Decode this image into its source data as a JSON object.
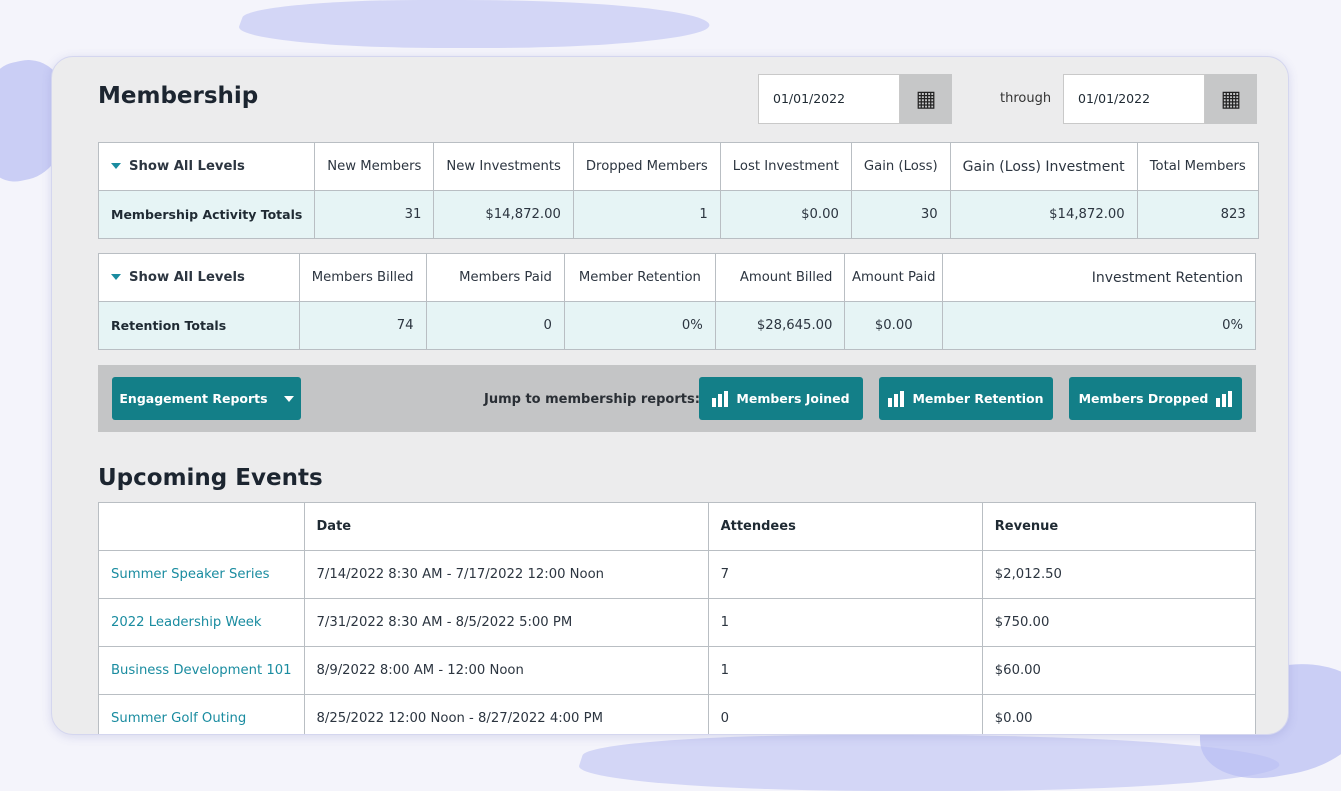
{
  "membership": {
    "title": "Membership",
    "date_from": "01/01/2022",
    "through_label": "through",
    "date_to": "01/01/2022"
  },
  "activity_table": {
    "show_all": "Show All Levels",
    "headers": [
      "New Members",
      "New Investments",
      "Dropped Members",
      "Lost Investment",
      "Gain (Loss)",
      "Gain (Loss) Investment",
      "Total Members"
    ],
    "row_label": "Membership Activity Totals",
    "values": [
      "31",
      "$14,872.00",
      "1",
      "$0.00",
      "30",
      "$14,872.00",
      "823"
    ]
  },
  "retention_table": {
    "show_all": "Show All Levels",
    "headers": [
      "Members Billed",
      "Members Paid",
      "Member Retention",
      "Amount Billed",
      "Amount Paid",
      "Investment Retention"
    ],
    "row_label": "Retention Totals",
    "values": [
      "74",
      "0",
      "0%",
      "$28,645.00",
      "$0.00",
      "0%"
    ]
  },
  "toolbar": {
    "engagement_label": "Engagement Reports",
    "jump_label": "Jump to membership reports:",
    "members_joined": "Members Joined",
    "member_retention": "Member Retention",
    "members_dropped": "Members Dropped"
  },
  "events": {
    "title": "Upcoming Events",
    "headers": [
      "",
      "Date",
      "Attendees",
      "Revenue"
    ],
    "rows": [
      {
        "name": "Summer Speaker Series",
        "date": "7/14/2022 8:30 AM - 7/17/2022 12:00 Noon",
        "attendees": "7",
        "revenue": "$2,012.50"
      },
      {
        "name": "2022 Leadership Week",
        "date": "7/31/2022 8:30 AM - 8/5/2022 5:00 PM",
        "attendees": "1",
        "revenue": "$750.00"
      },
      {
        "name": "Business Development 101",
        "date": "8/9/2022 8:00 AM - 12:00 Noon",
        "attendees": "1",
        "revenue": "$60.00"
      },
      {
        "name": "Summer Golf Outing",
        "date": "8/25/2022 12:00 Noon - 8/27/2022 4:00 PM",
        "attendees": "0",
        "revenue": "$0.00"
      }
    ]
  },
  "icons": {
    "calendar": "calendar-icon",
    "bar_chart": "bar-chart-icon",
    "triangle_down": "triangle-down-icon"
  },
  "colors": {
    "accent": "#137f88",
    "link": "#1a8ca0",
    "totals_bg": "#e6f4f5",
    "card_bg": "#ececed",
    "toolbar_bg": "#c4c5c6"
  }
}
